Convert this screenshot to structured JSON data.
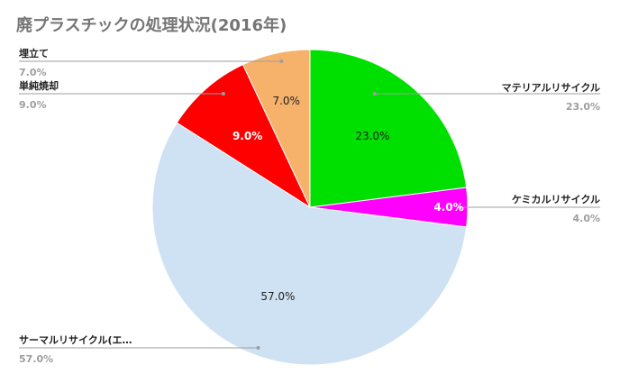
{
  "chart_data": {
    "type": "pie",
    "title": "廃プラスチックの処理状況(2016年)",
    "slices": [
      {
        "label": "マテリアルリサイクル",
        "value": 23.0,
        "display": "23.0%",
        "color": "#00e000",
        "inner_text_color": "#222222",
        "inner_bold": false
      },
      {
        "label": "ケミカルリサイクル",
        "value": 4.0,
        "display": "4.0%",
        "color": "#ff00ff",
        "inner_text_color": "#ffffff",
        "inner_bold": true
      },
      {
        "label": "サーマルリサイクル(エ…",
        "value": 57.0,
        "display": "57.0%",
        "color": "#cfe2f3",
        "inner_text_color": "#222222",
        "inner_bold": false
      },
      {
        "label": "単純焼却",
        "value": 9.0,
        "display": "9.0%",
        "color": "#ff0000",
        "inner_text_color": "#ffffff",
        "inner_bold": true
      },
      {
        "label": "埋立て",
        "value": 7.0,
        "display": "7.0%",
        "color": "#f6b26b",
        "inner_text_color": "#222222",
        "inner_bold": false
      }
    ],
    "start_angle": "12 o'clock",
    "direction": "clockwise",
    "legend": "callouts"
  }
}
